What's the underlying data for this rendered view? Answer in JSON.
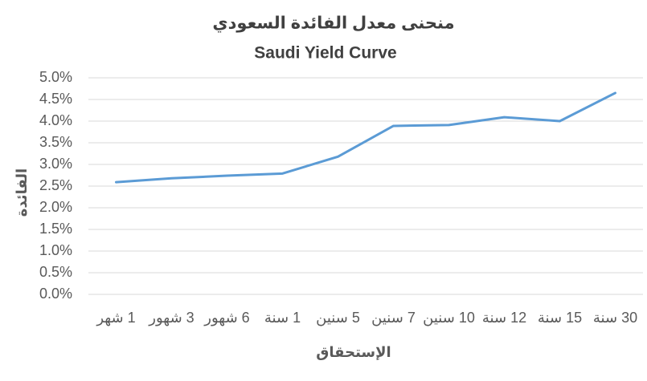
{
  "chart_data": {
    "type": "line",
    "title": "منحنى معدل الفائدة السعودي",
    "subtitle": "Saudi Yield Curve",
    "x_label": "الإستحقاق",
    "y_label": "الفائدة",
    "categories": [
      "1 شهر",
      "3 شهور",
      "6 شهور",
      "1 سنة",
      "5 سنين",
      "7 سنين",
      "10 سنين",
      "12 سنة",
      "15 سنة",
      "30 سنة"
    ],
    "series": [
      {
        "name": "Saudi Yield Curve",
        "color": "#5b9bd5",
        "values": [
          2.59,
          2.68,
          2.74,
          2.79,
          3.18,
          3.89,
          3.91,
          4.09,
          4.0,
          4.65
        ]
      }
    ],
    "ylim": [
      0,
      5
    ],
    "yticks": [
      {
        "value": 0,
        "label": "0.0%"
      },
      {
        "value": 0.5,
        "label": "0.5%"
      },
      {
        "value": 1,
        "label": "1.0%"
      },
      {
        "value": 1.5,
        "label": "1.5%"
      },
      {
        "value": 2,
        "label": "2.0%"
      },
      {
        "value": 2.5,
        "label": "2.5%"
      },
      {
        "value": 3,
        "label": "3.0%"
      },
      {
        "value": 3.5,
        "label": "3.5%"
      },
      {
        "value": 4,
        "label": "4.0%"
      },
      {
        "value": 4.5,
        "label": "4.5%"
      },
      {
        "value": 5,
        "label": "5.0%"
      }
    ],
    "grid": true
  }
}
